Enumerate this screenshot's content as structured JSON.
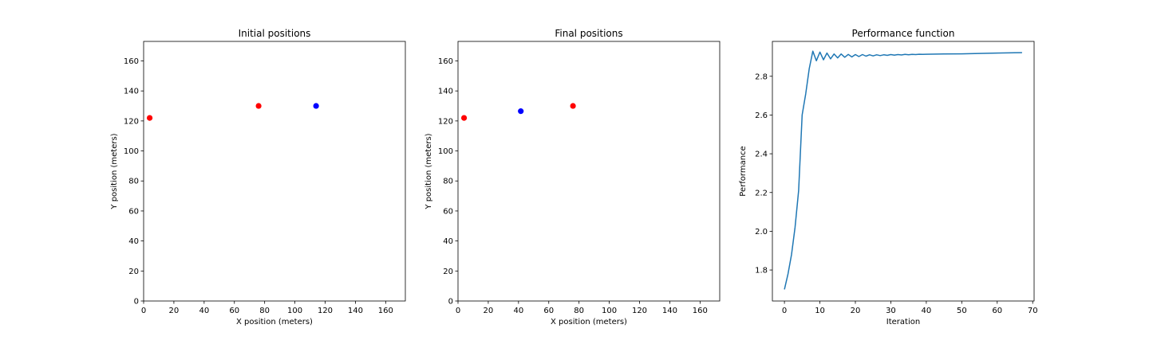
{
  "chart_data": [
    {
      "type": "scatter",
      "title": "Initial positions",
      "xlabel": "X position (meters)",
      "ylabel": "Y position (meters)",
      "xlim": [
        0,
        173
      ],
      "ylim": [
        0,
        173
      ],
      "xticks": [
        0,
        20,
        40,
        60,
        80,
        100,
        120,
        140,
        160
      ],
      "yticks": [
        0,
        20,
        40,
        60,
        80,
        100,
        120,
        140,
        160
      ],
      "grid": false,
      "points": [
        {
          "x": 4,
          "y": 122,
          "color": "#ff0000"
        },
        {
          "x": 76,
          "y": 130,
          "color": "#ff0000"
        },
        {
          "x": 114,
          "y": 130,
          "color": "#0000ff"
        }
      ]
    },
    {
      "type": "scatter",
      "title": "Final positions",
      "xlabel": "X position (meters)",
      "ylabel": "Y position (meters)",
      "xlim": [
        0,
        173
      ],
      "ylim": [
        0,
        173
      ],
      "xticks": [
        0,
        20,
        40,
        60,
        80,
        100,
        120,
        140,
        160
      ],
      "yticks": [
        0,
        20,
        40,
        60,
        80,
        100,
        120,
        140,
        160
      ],
      "grid": false,
      "points": [
        {
          "x": 4,
          "y": 122,
          "color": "#ff0000"
        },
        {
          "x": 76,
          "y": 130,
          "color": "#ff0000"
        },
        {
          "x": 41.5,
          "y": 126.5,
          "color": "#0000ff"
        }
      ]
    },
    {
      "type": "line",
      "title": "Performance function",
      "xlabel": "Iteration",
      "ylabel": "Performance",
      "xlim": [
        -3.4,
        70.4
      ],
      "ylim": [
        1.64,
        2.98
      ],
      "xticks": [
        0,
        10,
        20,
        30,
        40,
        50,
        60,
        70
      ],
      "yticks": [
        1.8,
        2.0,
        2.2,
        2.4,
        2.6,
        2.8
      ],
      "ytick_labels": [
        "1.8",
        "2.0",
        "2.2",
        "2.4",
        "2.6",
        "2.8"
      ],
      "grid": false,
      "series": [
        {
          "color": "#1f77b4",
          "x": [
            0,
            1,
            2,
            3,
            4,
            5,
            6,
            7,
            8,
            9,
            10,
            11,
            12,
            13,
            14,
            15,
            16,
            17,
            18,
            19,
            20,
            21,
            22,
            23,
            24,
            25,
            26,
            27,
            28,
            29,
            30,
            31,
            32,
            33,
            34,
            35,
            36,
            37,
            38,
            39,
            40,
            45,
            50,
            55,
            60,
            67
          ],
          "y": [
            1.7,
            1.78,
            1.88,
            2.02,
            2.21,
            2.6,
            2.71,
            2.84,
            2.93,
            2.88,
            2.925,
            2.885,
            2.92,
            2.89,
            2.915,
            2.895,
            2.915,
            2.898,
            2.913,
            2.9,
            2.912,
            2.902,
            2.912,
            2.904,
            2.911,
            2.905,
            2.911,
            2.907,
            2.911,
            2.908,
            2.912,
            2.909,
            2.912,
            2.91,
            2.913,
            2.911,
            2.913,
            2.912,
            2.914,
            2.913,
            2.914,
            2.915,
            2.916,
            2.918,
            2.92,
            2.922
          ]
        }
      ]
    }
  ]
}
